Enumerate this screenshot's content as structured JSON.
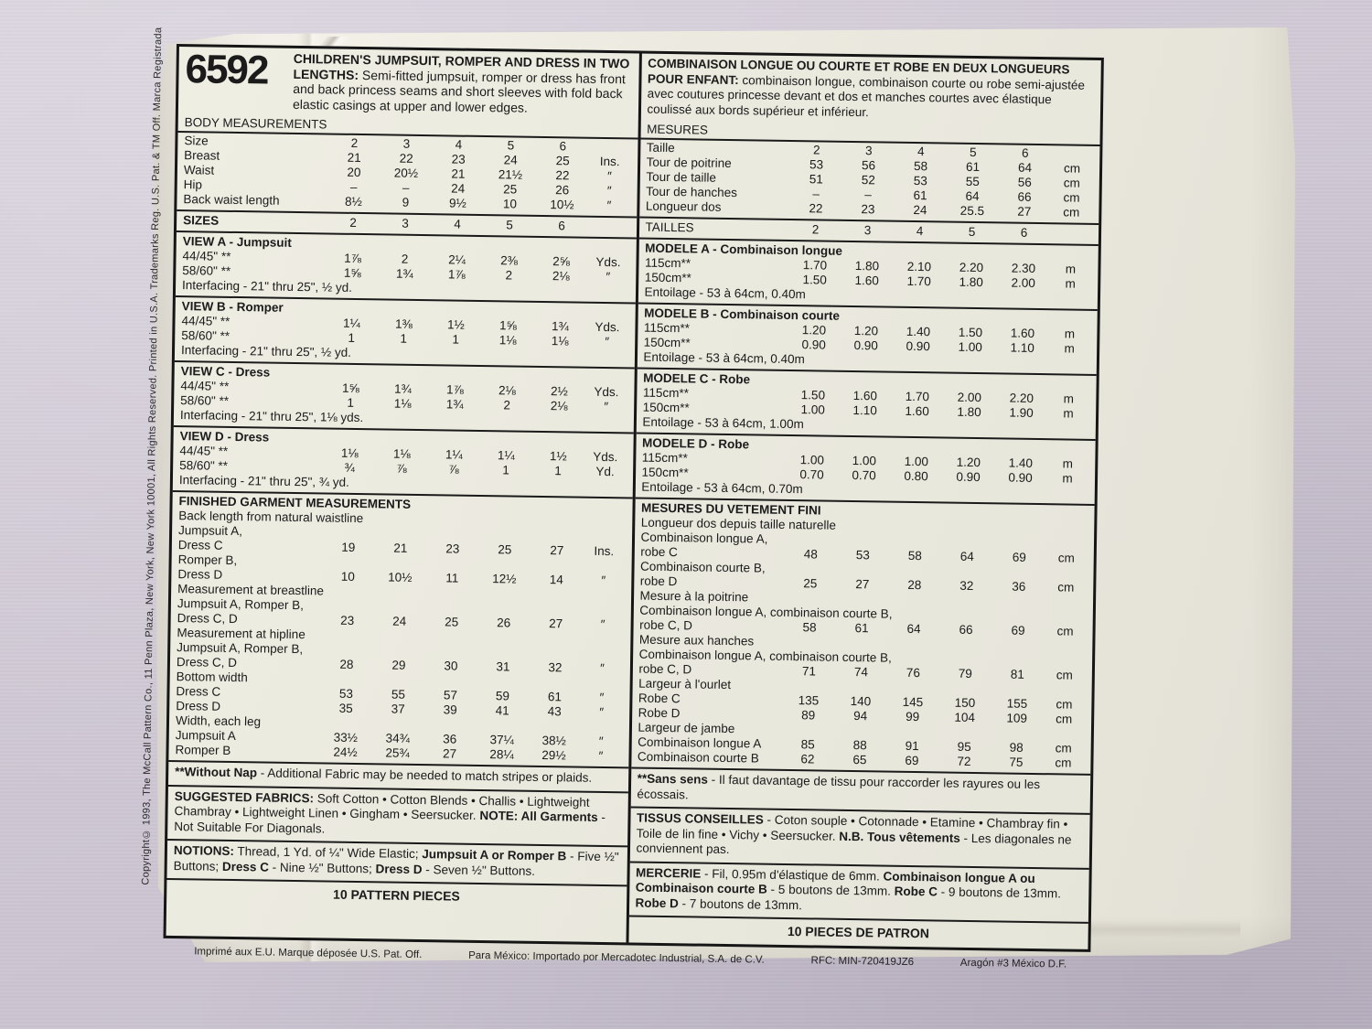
{
  "envelope": {
    "copyright_vertical": "Copyright© 1993, The McCall Pattern Co., 11 Penn Plaza, New York, New York 10001, All Rights Reserved.  Printed in U.S.A.  Trademarks Reg. U.S. Pat. & TM Off.  Marca Registrada",
    "fine_print": [
      "Imprimé aux E.U. Marque  déposée U.S. Pat. Off.",
      "Para México: Importado por Mercadotec Industrial,  S.A.  de C.V.",
      "RFC: MIN-720419JZ6",
      "Aragón #3  México D.F."
    ]
  },
  "english": {
    "number": "6592",
    "title": "CHILDREN'S JUMPSUIT, ROMPER AND DRESS IN TWO LENGTHS:",
    "description": " Semi-fitted jumpsuit, romper or dress has front and back princess seams and short sleeves with fold back elastic casings at upper and lower edges.",
    "sections": [
      {
        "name": "body-measurements",
        "type": "table",
        "heading": "BODY MEASUREMENTS",
        "bold": false,
        "ruled": true,
        "rows": [
          {
            "label": "Size",
            "values": [
              "2",
              "3",
              "4",
              "5",
              "6"
            ],
            "unit": ""
          },
          {
            "label": "Breast",
            "values": [
              "21",
              "22",
              "23",
              "24",
              "25"
            ],
            "unit": "Ins."
          },
          {
            "label": "Waist",
            "values": [
              "20",
              "20½",
              "21",
              "21½",
              "22"
            ],
            "unit": "″"
          },
          {
            "label": "Hip",
            "values": [
              "–",
              "–",
              "24",
              "25",
              "26"
            ],
            "unit": "″"
          },
          {
            "label": "Back waist length",
            "values": [
              "8½",
              "9",
              "9½",
              "10",
              "10½"
            ],
            "unit": "″"
          }
        ]
      },
      {
        "name": "sizes",
        "type": "table",
        "rows": [
          {
            "label": "SIZES",
            "bold": true,
            "values": [
              "2",
              "3",
              "4",
              "5",
              "6"
            ],
            "unit": ""
          }
        ]
      },
      {
        "name": "view-a",
        "type": "table",
        "heading": "VIEW A - Jumpsuit",
        "bold": true,
        "rows": [
          {
            "label": "44/45\" **",
            "values": [
              "1⅞",
              "2",
              "2¼",
              "2⅜",
              "2⅝"
            ],
            "unit": "Yds."
          },
          {
            "label": "58/60\" **",
            "values": [
              "1⅝",
              "1¾",
              "1⅞",
              "2",
              "2⅛"
            ],
            "unit": "″"
          },
          {
            "label": "Interfacing - 21\" thru 25\", ½ yd.",
            "full": true
          }
        ]
      },
      {
        "name": "view-b",
        "type": "table",
        "heading": "VIEW B - Romper",
        "bold": true,
        "rows": [
          {
            "label": "44/45\" **",
            "values": [
              "1¼",
              "1⅜",
              "1½",
              "1⅝",
              "1¾"
            ],
            "unit": "Yds."
          },
          {
            "label": "58/60\" **",
            "values": [
              "1",
              "1",
              "1",
              "1⅛",
              "1⅛"
            ],
            "unit": "″"
          },
          {
            "label": "Interfacing - 21\" thru 25\", ½ yd.",
            "full": true
          }
        ]
      },
      {
        "name": "view-c",
        "type": "table",
        "heading": "VIEW C - Dress",
        "bold": true,
        "rows": [
          {
            "label": "44/45\" **",
            "values": [
              "1⅝",
              "1¾",
              "1⅞",
              "2⅛",
              "2½"
            ],
            "unit": "Yds."
          },
          {
            "label": "58/60\" **",
            "values": [
              "1",
              "1⅛",
              "1¾",
              "2",
              "2⅛"
            ],
            "unit": "″"
          },
          {
            "label": "Interfacing - 21\" thru 25\", 1⅛ yds.",
            "full": true
          }
        ]
      },
      {
        "name": "view-d",
        "type": "table",
        "heading": "VIEW D - Dress",
        "bold": true,
        "rows": [
          {
            "label": "44/45\" **",
            "values": [
              "1⅛",
              "1⅛",
              "1¼",
              "1¼",
              "1½"
            ],
            "unit": "Yds."
          },
          {
            "label": "58/60\" **",
            "values": [
              "¾",
              "⅞",
              "⅞",
              "1",
              "1"
            ],
            "unit": "Yd."
          },
          {
            "label": "Interfacing - 21\" thru 25\", ¾ yd.",
            "full": true
          }
        ]
      },
      {
        "name": "finished-garment-measurements",
        "type": "table",
        "heading": "FINISHED GARMENT MEASUREMENTS",
        "bold": true,
        "rows": [
          {
            "label": "Back length from natural waistline",
            "full": true
          },
          {
            "label": "Jumpsuit A,",
            "full": true
          },
          {
            "label": "Dress C",
            "values": [
              "19",
              "21",
              "23",
              "25",
              "27"
            ],
            "unit": "Ins."
          },
          {
            "label": "Romper B,",
            "full": true
          },
          {
            "label": "Dress D",
            "values": [
              "10",
              "10½",
              "11",
              "12½",
              "14"
            ],
            "unit": "″"
          },
          {
            "label": "Measurement at breastline",
            "full": true
          },
          {
            "label": "Jumpsuit A, Romper B,",
            "full": true
          },
          {
            "label": "Dress C, D",
            "values": [
              "23",
              "24",
              "25",
              "26",
              "27"
            ],
            "unit": "″"
          },
          {
            "label": "Measurement at hipline",
            "full": true
          },
          {
            "label": "Jumpsuit A, Romper B,",
            "full": true
          },
          {
            "label": "Dress C, D",
            "values": [
              "28",
              "29",
              "30",
              "31",
              "32"
            ],
            "unit": "″"
          },
          {
            "label": "Bottom width",
            "full": true
          },
          {
            "label": "Dress C",
            "values": [
              "53",
              "55",
              "57",
              "59",
              "61"
            ],
            "unit": "″"
          },
          {
            "label": "Dress D",
            "values": [
              "35",
              "37",
              "39",
              "41",
              "43"
            ],
            "unit": "″"
          },
          {
            "label": "Width, each leg",
            "full": true
          },
          {
            "label": "Jumpsuit A",
            "values": [
              "33½",
              "34¾",
              "36",
              "37¼",
              "38½"
            ],
            "unit": "″"
          },
          {
            "label": "Romper B",
            "values": [
              "24½",
              "25¾",
              "27",
              "28¼",
              "29½"
            ],
            "unit": "″"
          }
        ]
      },
      {
        "name": "without-nap-note",
        "type": "note",
        "segments": [
          {
            "b": true,
            "t": "**Without Nap"
          },
          {
            "t": " - Additional Fabric may be needed to match stripes or plaids."
          }
        ]
      },
      {
        "name": "suggested-fabrics",
        "type": "note",
        "segments": [
          {
            "b": true,
            "t": "SUGGESTED FABRICS:"
          },
          {
            "t": " Soft Cotton • Cotton Blends • Challis • Lightweight Chambray • Lightweight Linen • Gingham • Seersucker. "
          },
          {
            "b": true,
            "t": "NOTE: All Garments"
          },
          {
            "t": " - Not Suitable For Diagonals."
          }
        ]
      },
      {
        "name": "notions",
        "type": "note",
        "segments": [
          {
            "b": true,
            "t": "NOTIONS:"
          },
          {
            "t": " Thread, 1 Yd. of ¼\" Wide Elastic; "
          },
          {
            "b": true,
            "t": "Jumpsuit A or Romper B"
          },
          {
            "t": " - Five ½\" Buttons; "
          },
          {
            "b": true,
            "t": "Dress C"
          },
          {
            "t": " - Nine ½\" Buttons; "
          },
          {
            "b": true,
            "t": "Dress D"
          },
          {
            "t": " - Seven ½\"  Buttons."
          }
        ]
      },
      {
        "name": "pattern-pieces",
        "type": "footer",
        "text": "10 PATTERN PIECES"
      }
    ]
  },
  "french": {
    "title": "COMBINAISON LONGUE OU COURTE ET ROBE EN DEUX LONGUEURS POUR ENFANT:",
    "description": " combinaison longue, combinaison courte ou robe semi-ajustée avec coutures princesse devant et dos et manches courtes avec élastique coulissé aux bords supérieur et inférieur.",
    "sections": [
      {
        "name": "mesures",
        "type": "table",
        "heading": "MESURES",
        "bold": false,
        "ruled": true,
        "rows": [
          {
            "label": "Taille",
            "values": [
              "2",
              "3",
              "4",
              "5",
              "6"
            ],
            "unit": ""
          },
          {
            "label": "Tour de poitrine",
            "values": [
              "53",
              "56",
              "58",
              "61",
              "64"
            ],
            "unit": "cm"
          },
          {
            "label": "Tour de taille",
            "values": [
              "51",
              "52",
              "53",
              "55",
              "56"
            ],
            "unit": "cm"
          },
          {
            "label": "Tour de hanches",
            "values": [
              "–",
              "–",
              "61",
              "64",
              "66"
            ],
            "unit": "cm"
          },
          {
            "label": "Longueur dos",
            "values": [
              "22",
              "23",
              "24",
              "25.5",
              "27"
            ],
            "unit": "cm"
          }
        ]
      },
      {
        "name": "tailles",
        "type": "table",
        "rows": [
          {
            "label": "TAILLES",
            "values": [
              "2",
              "3",
              "4",
              "5",
              "6"
            ],
            "unit": ""
          }
        ]
      },
      {
        "name": "modele-a",
        "type": "table",
        "heading": "MODELE A - Combinaison longue",
        "bold": true,
        "rows": [
          {
            "label": "115cm**",
            "values": [
              "1.70",
              "1.80",
              "2.10",
              "2.20",
              "2.30"
            ],
            "unit": "m"
          },
          {
            "label": "150cm**",
            "values": [
              "1.50",
              "1.60",
              "1.70",
              "1.80",
              "2.00"
            ],
            "unit": "m"
          },
          {
            "label": "Entoilage - 53 à 64cm, 0.40m",
            "full": true
          }
        ]
      },
      {
        "name": "modele-b",
        "type": "table",
        "heading": "MODELE B - Combinaison courte",
        "bold": true,
        "rows": [
          {
            "label": "115cm**",
            "values": [
              "1.20",
              "1.20",
              "1.40",
              "1.50",
              "1.60"
            ],
            "unit": "m"
          },
          {
            "label": "150cm**",
            "values": [
              "0.90",
              "0.90",
              "0.90",
              "1.00",
              "1.10"
            ],
            "unit": "m"
          },
          {
            "label": "Entoilage - 53 à 64cm, 0.40m",
            "full": true
          }
        ]
      },
      {
        "name": "modele-c",
        "type": "table",
        "heading": "MODELE C - Robe",
        "bold": true,
        "rows": [
          {
            "label": "115cm**",
            "values": [
              "1.50",
              "1.60",
              "1.70",
              "2.00",
              "2.20"
            ],
            "unit": "m"
          },
          {
            "label": "150cm**",
            "values": [
              "1.00",
              "1.10",
              "1.60",
              "1.80",
              "1.90"
            ],
            "unit": "m"
          },
          {
            "label": "Entoilage - 53 à 64cm, 1.00m",
            "full": true
          }
        ]
      },
      {
        "name": "modele-d",
        "type": "table",
        "heading": "MODELE D - Robe",
        "bold": true,
        "rows": [
          {
            "label": "115cm**",
            "values": [
              "1.00",
              "1.00",
              "1.00",
              "1.20",
              "1.40"
            ],
            "unit": "m"
          },
          {
            "label": "150cm**",
            "values": [
              "0.70",
              "0.70",
              "0.80",
              "0.90",
              "0.90"
            ],
            "unit": "m"
          },
          {
            "label": "Entoilage - 53 à 64cm, 0.70m",
            "full": true
          }
        ]
      },
      {
        "name": "mesures-du-vetement-fini",
        "type": "table",
        "heading": "MESURES DU VETEMENT FINI",
        "bold": true,
        "rows": [
          {
            "label": "Longueur dos depuis taille naturelle",
            "full": true
          },
          {
            "label": "Combinaison longue A,",
            "full": true
          },
          {
            "label": "robe C",
            "values": [
              "48",
              "53",
              "58",
              "64",
              "69"
            ],
            "unit": "cm"
          },
          {
            "label": "Combinaison courte B,",
            "full": true
          },
          {
            "label": "robe D",
            "values": [
              "25",
              "27",
              "28",
              "32",
              "36"
            ],
            "unit": "cm"
          },
          {
            "label": "Mesure à la poitrine",
            "full": true
          },
          {
            "label": "Combinaison longue A, combinaison courte B,",
            "full": true
          },
          {
            "label": "robe C, D",
            "values": [
              "58",
              "61",
              "64",
              "66",
              "69"
            ],
            "unit": "cm"
          },
          {
            "label": "Mesure aux hanches",
            "full": true
          },
          {
            "label": "Combinaison longue A, combinaison courte B,",
            "full": true
          },
          {
            "label": "robe C, D",
            "values": [
              "71",
              "74",
              "76",
              "79",
              "81"
            ],
            "unit": "cm"
          },
          {
            "label": "Largeur à l'ourlet",
            "full": true
          },
          {
            "label": "Robe C",
            "values": [
              "135",
              "140",
              "145",
              "150",
              "155"
            ],
            "unit": "cm"
          },
          {
            "label": "Robe D",
            "values": [
              "89",
              "94",
              "99",
              "104",
              "109"
            ],
            "unit": "cm"
          },
          {
            "label": "Largeur de jambe",
            "full": true
          },
          {
            "label": "Combinaison longue A",
            "values": [
              "85",
              "88",
              "91",
              "95",
              "98"
            ],
            "unit": "cm"
          },
          {
            "label": "Combinaison courte B",
            "values": [
              "62",
              "65",
              "69",
              "72",
              "75"
            ],
            "unit": "cm"
          }
        ]
      },
      {
        "name": "sans-sens-note",
        "type": "note",
        "segments": [
          {
            "b": true,
            "t": "**Sans sens"
          },
          {
            "t": " - Il faut davantage de tissu pour raccorder les rayures ou les écossais."
          }
        ]
      },
      {
        "name": "tissus-conseilles",
        "type": "note",
        "segments": [
          {
            "b": true,
            "t": "TISSUS CONSEILLES"
          },
          {
            "t": " - Coton souple • Cotonnade • Etamine • Chambray fin • Toile de lin fine • Vichy • Seersucker. "
          },
          {
            "b": true,
            "t": "N.B."
          },
          {
            "t": " "
          },
          {
            "b": true,
            "t": "Tous vêtements"
          },
          {
            "t": " - Les diagonales ne conviennent pas."
          }
        ]
      },
      {
        "name": "mercerie",
        "type": "note",
        "segments": [
          {
            "b": true,
            "t": "MERCERIE"
          },
          {
            "t": " - Fil, 0.95m d'élastique de 6mm. "
          },
          {
            "b": true,
            "t": "Combinaison longue A ou Combinaison courte B"
          },
          {
            "t": " - 5 boutons de 13mm. "
          },
          {
            "b": true,
            "t": "Robe C"
          },
          {
            "t": " - 9 boutons de 13mm. "
          },
          {
            "b": true,
            "t": "Robe D"
          },
          {
            "t": " - 7 boutons de 13mm."
          }
        ]
      },
      {
        "name": "pieces-de-patron",
        "type": "footer",
        "text": "10 PIECES DE PATRON"
      }
    ]
  }
}
